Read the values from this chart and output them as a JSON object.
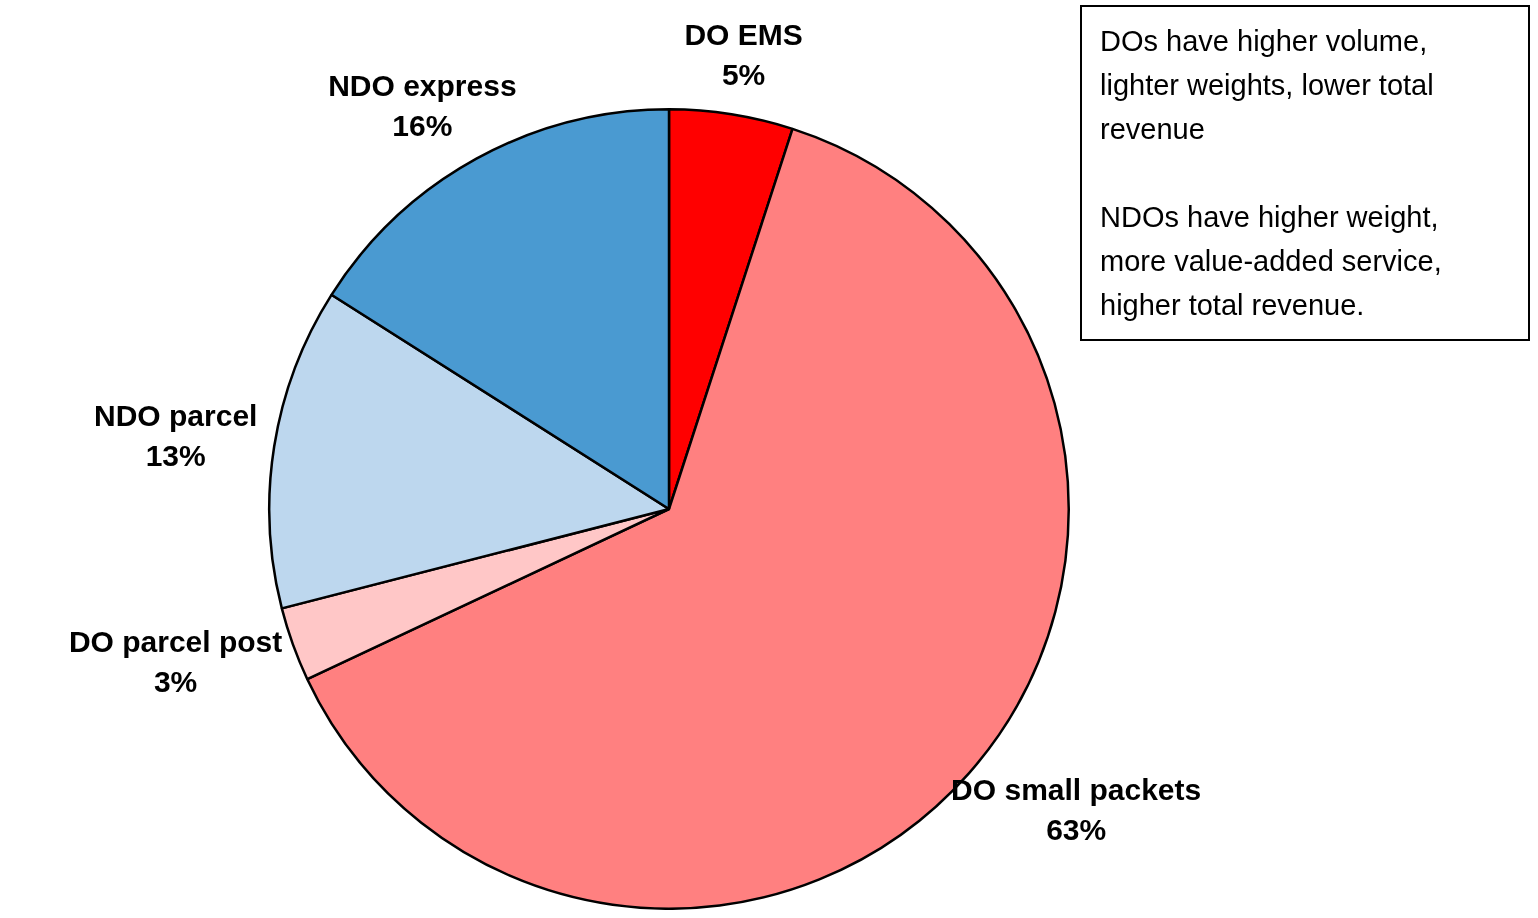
{
  "chart_data": {
    "type": "pie",
    "categories": [
      "DO EMS",
      "DO small packets",
      "DO parcel post",
      "NDO parcel",
      "NDO express"
    ],
    "values": [
      5,
      63,
      3,
      13,
      16
    ],
    "value_labels": [
      "5%",
      "63%",
      "3%",
      "13%",
      "16%"
    ],
    "colors": [
      "#ff0000",
      "#ff8080",
      "#ffc7c7",
      "#bdd7ee",
      "#4a9ad1"
    ],
    "legend": false,
    "annotations": [
      "DOs have higher volume, lighter weights, lower total revenue",
      "NDOs have higher weight, more value-added service, higher total revenue."
    ]
  }
}
